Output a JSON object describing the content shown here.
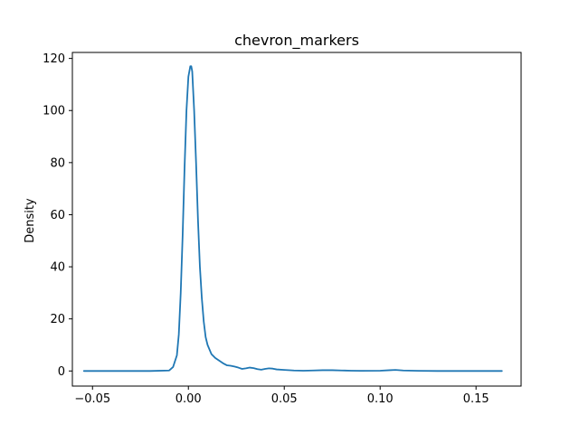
{
  "chart_data": {
    "type": "line",
    "title": "chevron_markers",
    "xlabel": "",
    "ylabel": "Density",
    "xlim": [
      -0.0605,
      0.1735
    ],
    "ylim": [
      -5.8,
      122.3
    ],
    "grid": false,
    "legend": "none",
    "xticks": [
      {
        "value": -0.05,
        "label": "−0.05"
      },
      {
        "value": 0.0,
        "label": "0.00"
      },
      {
        "value": 0.05,
        "label": "0.05"
      },
      {
        "value": 0.1,
        "label": "0.10"
      },
      {
        "value": 0.15,
        "label": "0.15"
      }
    ],
    "yticks": [
      {
        "value": 0,
        "label": "0"
      },
      {
        "value": 20,
        "label": "20"
      },
      {
        "value": 40,
        "label": "40"
      },
      {
        "value": 60,
        "label": "60"
      },
      {
        "value": 80,
        "label": "80"
      },
      {
        "value": 100,
        "label": "100"
      },
      {
        "value": 120,
        "label": "120"
      }
    ],
    "series": [
      {
        "color": "#1f77b4",
        "x": [
          -0.0545,
          -0.04,
          -0.02,
          -0.01,
          -0.008,
          -0.006,
          -0.005,
          -0.004,
          -0.003,
          -0.002,
          -0.001,
          0.0,
          0.001,
          0.0015,
          0.002,
          0.003,
          0.004,
          0.005,
          0.006,
          0.007,
          0.008,
          0.009,
          0.01,
          0.012,
          0.014,
          0.016,
          0.018,
          0.02,
          0.022,
          0.024,
          0.026,
          0.028,
          0.03,
          0.032,
          0.034,
          0.036,
          0.038,
          0.04,
          0.042,
          0.044,
          0.046,
          0.05,
          0.055,
          0.06,
          0.065,
          0.07,
          0.075,
          0.08,
          0.085,
          0.09,
          0.1,
          0.105,
          0.108,
          0.112,
          0.12,
          0.13,
          0.14,
          0.15,
          0.1635
        ],
        "y": [
          0,
          0,
          0,
          0.2,
          1.5,
          6,
          14,
          30,
          52,
          78,
          100,
          113,
          117,
          117,
          115,
          100,
          80,
          58,
          40,
          28,
          19,
          13,
          10,
          6.5,
          5,
          4,
          3,
          2.2,
          2,
          1.7,
          1.3,
          0.8,
          1.0,
          1.3,
          1.1,
          0.7,
          0.5,
          0.8,
          1.0,
          0.9,
          0.6,
          0.4,
          0.2,
          0.1,
          0.2,
          0.3,
          0.3,
          0.2,
          0.1,
          0.05,
          0.1,
          0.3,
          0.4,
          0.2,
          0.05,
          0,
          0,
          0,
          0
        ]
      }
    ]
  }
}
